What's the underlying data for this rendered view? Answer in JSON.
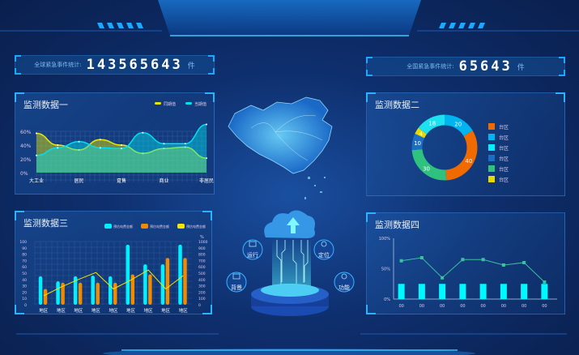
{
  "stats": {
    "global": {
      "label": "全球紧急事件统计:",
      "value": "143565643",
      "unit": "件"
    },
    "national": {
      "label": "全国紧急事件统计:",
      "value": "65643",
      "unit": "件"
    }
  },
  "panels": {
    "p1": {
      "title": "监测数据一"
    },
    "p2": {
      "title": "监测数据二"
    },
    "p3": {
      "title": "监测数据三"
    },
    "p4": {
      "title": "监测数据四"
    }
  },
  "center": {
    "features": [
      "运行",
      "定位",
      "背景",
      "功能"
    ]
  },
  "colors": {
    "accent": "#1ca8ff",
    "cyan": "#00f0ff",
    "yellow": "#f5e600",
    "orange": "#f07800"
  },
  "chart_data": [
    {
      "type": "area",
      "title": "监测数据一",
      "categories": [
        "大工业",
        "",
        "居民",
        "",
        "趸售",
        "",
        "商业",
        "",
        "非居民"
      ],
      "yticks": [
        "0%",
        "20%",
        "40%",
        "60%"
      ],
      "ylim": [
        0,
        60
      ],
      "series": [
        {
          "name": "同期值",
          "color": "#e8e800",
          "values": [
            57,
            40,
            33,
            48,
            40,
            28,
            35,
            37,
            21
          ]
        },
        {
          "name": "当期值",
          "color": "#00e0f0",
          "values": [
            25,
            36,
            45,
            36,
            35,
            58,
            42,
            42,
            70
          ]
        }
      ],
      "legend": "top-right",
      "grid": true
    },
    {
      "type": "pie",
      "title": "监测数据二",
      "donut": true,
      "slices": [
        {
          "label": "台区",
          "value": 20,
          "color": "#00b4f0"
        },
        {
          "label": "台区",
          "value": 40,
          "color": "#f06a00"
        },
        {
          "label": "台区",
          "value": 30,
          "color": "#2ec27e"
        },
        {
          "label": "台区",
          "value": 10,
          "color": "#1a6fc4"
        },
        {
          "label": "台区",
          "value": 4,
          "color": "#e8d800"
        },
        {
          "label": "台区",
          "value": 18,
          "color": "#1de0f0"
        }
      ],
      "legend_items": [
        {
          "label": "台区",
          "color": "#f06a00"
        },
        {
          "label": "台区",
          "color": "#00b4f0"
        },
        {
          "label": "台区",
          "color": "#00f0ff"
        },
        {
          "label": "台区",
          "color": "#1a6fc4"
        },
        {
          "label": "台区",
          "color": "#2ec27e"
        },
        {
          "label": "台区",
          "color": "#e8d800"
        }
      ],
      "legend": "right"
    },
    {
      "type": "bar",
      "title": "监测数据三",
      "categories": [
        "地区",
        "地区",
        "地区",
        "地区",
        "地区",
        "地区",
        "地区",
        "地区",
        "地区"
      ],
      "ylim": [
        0,
        100
      ],
      "yticks": [
        "0",
        "10",
        "20",
        "30",
        "40",
        "50",
        "60",
        "70",
        "80",
        "90",
        "100"
      ],
      "y2lim": [
        0,
        1000
      ],
      "y2ticks": [
        "0",
        "100",
        "200",
        "300",
        "400",
        "500",
        "600",
        "700",
        "800",
        "900",
        "1000"
      ],
      "y2label": "%",
      "series": [
        {
          "name": "预估电费金额",
          "color": "#00f0ff",
          "values": [
            45,
            37,
            45,
            46,
            45,
            95,
            64,
            64,
            95
          ]
        },
        {
          "name": "预估电费金额",
          "color": "#f08a00",
          "values": [
            25,
            35,
            35,
            35,
            35,
            48,
            48,
            74,
            74
          ]
        },
        {
          "name": "预估电费金额",
          "color": "#f5e600",
          "type": "line",
          "axis": "right",
          "values": [
            140,
            280,
            400,
            510,
            250,
            390,
            550,
            250,
            460
          ]
        }
      ],
      "legend": "top-right",
      "grid": true
    },
    {
      "type": "bar",
      "title": "监测数据四",
      "categories": [
        "00",
        "00",
        "00",
        "00",
        "00",
        "00",
        "00",
        "00"
      ],
      "ylim": [
        0,
        100
      ],
      "yticks": [
        "0%",
        "50%",
        "100%"
      ],
      "series": [
        {
          "color": "#00f8ff",
          "values": [
            25,
            25,
            25,
            25,
            25,
            25,
            25,
            25
          ]
        },
        {
          "color": "#3cc0a0",
          "type": "line",
          "values": [
            63,
            68,
            35,
            65,
            65,
            56,
            60,
            28
          ]
        }
      ]
    }
  ]
}
